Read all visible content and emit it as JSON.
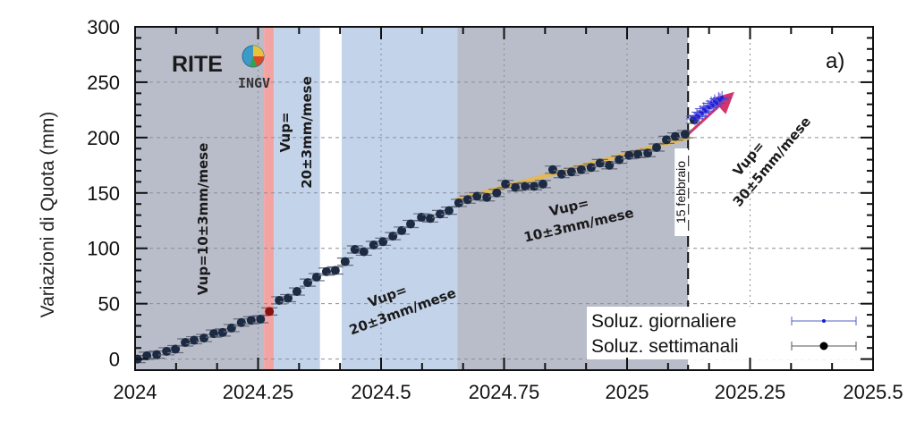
{
  "chart_data": {
    "type": "scatter",
    "panel_label": "a)",
    "station": "RITE",
    "logo_text": "INGV",
    "xlabel": "",
    "ylabel": "Variazioni di Quota (mm)",
    "xlim": [
      2024,
      2025.5
    ],
    "ylim": [
      -10,
      300
    ],
    "x_ticks": [
      2024,
      2024.25,
      2024.5,
      2024.75,
      2025,
      2025.25,
      2025.5
    ],
    "x_tick_labels": [
      "2024",
      "2024.25",
      "2024.5",
      "2024.75",
      "2025",
      "2025.25",
      "2025.5"
    ],
    "y_ticks": [
      0,
      50,
      100,
      150,
      200,
      250,
      300
    ],
    "y_tick_labels": [
      "0",
      "50",
      "100",
      "150",
      "200",
      "250",
      "300"
    ],
    "grid": true,
    "shaded_periods": [
      {
        "from": 2024.0,
        "to": 2024.262,
        "color": "#b9bcc9",
        "rate": "Vup=10±3mm/mese"
      },
      {
        "from": 2024.262,
        "to": 2024.282,
        "color": "#f4a3a3",
        "rate": ""
      },
      {
        "from": 2024.282,
        "to": 2024.376,
        "color": "#c3d3ea",
        "rate": "Vup= 20±3mm/mese"
      },
      {
        "from": 2024.376,
        "to": 2024.42,
        "color": "#ffffff",
        "rate": ""
      },
      {
        "from": 2024.42,
        "to": 2024.655,
        "color": "#c3d3ea",
        "rate": "Vup= 20±3mm/mese"
      },
      {
        "from": 2024.655,
        "to": 2025.124,
        "color": "#b9bcc9",
        "rate": "Vup= 10±3mm/mese"
      },
      {
        "from": 2025.124,
        "to": 2025.5,
        "color": "#ffffff",
        "rate": "Vup= 30±5mm/mese"
      }
    ],
    "event_marker": {
      "x": 2025.124,
      "label": "15 febbraio"
    },
    "annotations": [
      {
        "id": "a1",
        "line1": "Vup=10±3mm/mese",
        "line2": ""
      },
      {
        "id": "a2",
        "line1": "Vup=",
        "line2": "20±3mm/mese"
      },
      {
        "id": "a3",
        "line1": "Vup=",
        "line2": "20±3mm/mese"
      },
      {
        "id": "a4",
        "line1": "Vup=",
        "line2": "10±3mm/mese"
      },
      {
        "id": "a5",
        "line1": "Vup=",
        "line2": "30±5mm/mese"
      }
    ],
    "legend": {
      "position": "bottom-right",
      "entries": [
        {
          "label": "Soluz. giornaliere",
          "color": "#1a1ad0",
          "marker": "small-dot-errorbar"
        },
        {
          "label": "Soluz. settimanali",
          "color": "#000000",
          "marker": "large-dot-errorbar"
        }
      ]
    },
    "series": [
      {
        "name": "Soluz. settimanali",
        "color": "#1c2a44",
        "error_mm": 3,
        "points": [
          [
            2024.005,
            0
          ],
          [
            2024.024,
            3
          ],
          [
            2024.044,
            4
          ],
          [
            2024.064,
            7
          ],
          [
            2024.082,
            9
          ],
          [
            2024.102,
            15
          ],
          [
            2024.12,
            17
          ],
          [
            2024.14,
            19
          ],
          [
            2024.16,
            23
          ],
          [
            2024.178,
            24
          ],
          [
            2024.196,
            28
          ],
          [
            2024.216,
            33
          ],
          [
            2024.236,
            35
          ],
          [
            2024.255,
            36
          ],
          [
            2024.293,
            53
          ],
          [
            2024.311,
            55
          ],
          [
            2024.329,
            61
          ],
          [
            2024.351,
            69
          ],
          [
            2024.369,
            74
          ],
          [
            2024.389,
            79
          ],
          [
            2024.407,
            80
          ],
          [
            2024.427,
            88
          ],
          [
            2024.447,
            99
          ],
          [
            2024.465,
            97
          ],
          [
            2024.485,
            103
          ],
          [
            2024.504,
            106
          ],
          [
            2024.524,
            111
          ],
          [
            2024.542,
            116
          ],
          [
            2024.56,
            122
          ],
          [
            2024.582,
            128
          ],
          [
            2024.6,
            127
          ],
          [
            2024.62,
            131
          ],
          [
            2024.638,
            134
          ],
          [
            2024.658,
            141
          ],
          [
            2024.676,
            144
          ],
          [
            2024.695,
            147
          ],
          [
            2024.715,
            146
          ],
          [
            2024.735,
            150
          ],
          [
            2024.753,
            158
          ],
          [
            2024.773,
            155
          ],
          [
            2024.793,
            156
          ],
          [
            2024.811,
            156
          ],
          [
            2024.829,
            158
          ],
          [
            2024.849,
            171
          ],
          [
            2024.867,
            167
          ],
          [
            2024.887,
            169
          ],
          [
            2024.907,
            171
          ],
          [
            2024.927,
            173
          ],
          [
            2024.945,
            177
          ],
          [
            2024.964,
            175
          ],
          [
            2024.984,
            180
          ],
          [
            2025.004,
            184
          ],
          [
            2025.022,
            185
          ],
          [
            2025.042,
            186
          ],
          [
            2025.06,
            191
          ],
          [
            2025.08,
            198
          ],
          [
            2025.098,
            201
          ],
          [
            2025.118,
            203
          ],
          [
            2025.136,
            216
          ]
        ]
      },
      {
        "name": "Evento (settimana)",
        "color": "#8b1010",
        "error_mm": 3,
        "points": [
          [
            2024.273,
            43
          ]
        ]
      },
      {
        "name": "Soluz. giornaliere",
        "color": "#2020d8",
        "error_mm": 6,
        "points": [
          [
            2025.138,
            217
          ],
          [
            2025.142,
            220
          ],
          [
            2025.146,
            219
          ],
          [
            2025.149,
            223
          ],
          [
            2025.153,
            222
          ],
          [
            2025.156,
            226
          ],
          [
            2025.16,
            224
          ],
          [
            2025.164,
            228
          ],
          [
            2025.167,
            227
          ],
          [
            2025.171,
            231
          ],
          [
            2025.175,
            229
          ],
          [
            2025.178,
            233
          ],
          [
            2025.182,
            231
          ],
          [
            2025.186,
            235
          ],
          [
            2025.189,
            234
          ],
          [
            2025.193,
            236
          ]
        ]
      }
    ],
    "fits": [
      {
        "name": "trend 10mm/mese",
        "color": "#e8b84a",
        "from": [
          2024.655,
          144
        ],
        "to": [
          2025.124,
          200
        ]
      },
      {
        "name": "trend 30mm/mese",
        "color": "#d0205a",
        "from": [
          2025.124,
          203
        ],
        "to": [
          2025.21,
          238
        ],
        "arrow": true
      }
    ]
  }
}
